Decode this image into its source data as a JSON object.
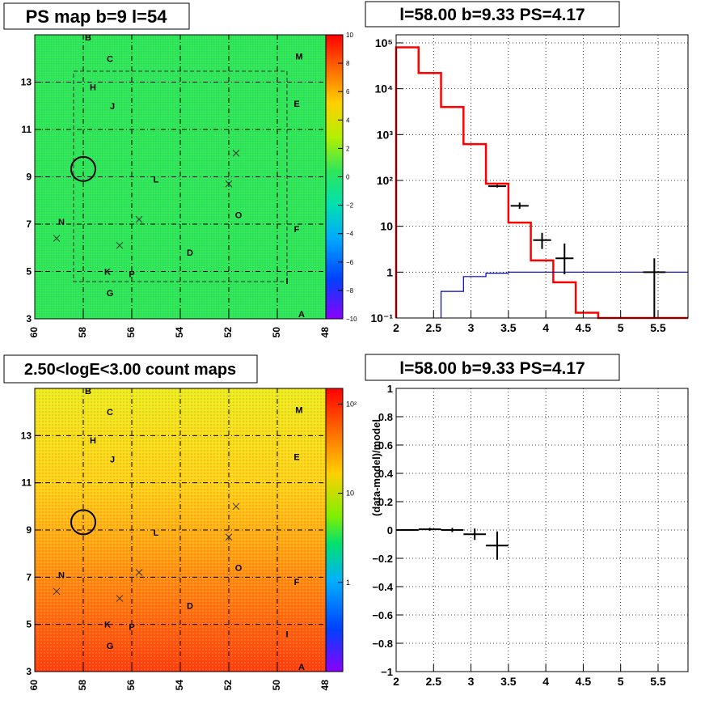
{
  "chart_data": [
    {
      "type": "heatmap",
      "title": "PS map b=9 l=54",
      "x_ticks": [
        "60",
        "58",
        "56",
        "54",
        "52",
        "50",
        "48"
      ],
      "x_values": [
        60,
        58,
        56,
        54,
        52,
        50,
        48
      ],
      "xlim": [
        60,
        48
      ],
      "y_ticks": [
        "3",
        "5",
        "7",
        "9",
        "11",
        "13"
      ],
      "y_values": [
        3,
        5,
        7,
        9,
        11,
        13
      ],
      "ylim": [
        3,
        15
      ],
      "colorbar": {
        "scale": "linear",
        "range": [
          -10,
          10
        ],
        "ticks": [
          "10",
          "8",
          "6",
          "4",
          "2",
          "0",
          "−2",
          "−4",
          "−6",
          "−8",
          "−10"
        ],
        "tick_values": [
          10,
          8,
          6,
          4,
          2,
          0,
          -2,
          -4,
          -6,
          -8,
          -10
        ]
      },
      "grid": true,
      "field_color": "#2ee65a",
      "source_labels": [
        {
          "name": "B",
          "l": 57.8,
          "b": 14.9
        },
        {
          "name": "C",
          "l": 56.9,
          "b": 14.0
        },
        {
          "name": "M",
          "l": 49.1,
          "b": 14.1
        },
        {
          "name": "H",
          "l": 57.6,
          "b": 12.8
        },
        {
          "name": "J",
          "l": 56.8,
          "b": 12.0
        },
        {
          "name": "E",
          "l": 49.2,
          "b": 12.1
        },
        {
          "name": "L",
          "l": 55.0,
          "b": 8.9
        },
        {
          "name": "O",
          "l": 51.6,
          "b": 7.4
        },
        {
          "name": "N",
          "l": 58.9,
          "b": 7.1
        },
        {
          "name": "F",
          "l": 49.2,
          "b": 6.8
        },
        {
          "name": "D",
          "l": 53.6,
          "b": 5.8
        },
        {
          "name": "K",
          "l": 57.0,
          "b": 5.0
        },
        {
          "name": "P",
          "l": 56.0,
          "b": 4.9
        },
        {
          "name": "I",
          "l": 49.6,
          "b": 4.6
        },
        {
          "name": "G",
          "l": 56.9,
          "b": 4.1
        },
        {
          "name": "A",
          "l": 49.0,
          "b": 3.2
        }
      ],
      "crosses": [
        {
          "l": 51.7,
          "b": 10.0
        },
        {
          "l": 52.0,
          "b": 8.7
        },
        {
          "l": 55.7,
          "b": 7.2
        },
        {
          "l": 59.1,
          "b": 6.4
        },
        {
          "l": 56.5,
          "b": 6.1
        }
      ],
      "circle": {
        "l": 58.0,
        "b": 9.33
      }
    },
    {
      "type": "line",
      "title": "l=58.00 b=9.33 PS=4.17",
      "xlabel": "",
      "ylabel": "",
      "xlim": [
        2,
        5.9
      ],
      "ylim": [
        0.1,
        150000
      ],
      "y_scale": "log",
      "x_ticks": [
        "2",
        "2.5",
        "3",
        "3.5",
        "4",
        "4.5",
        "5",
        "5.5"
      ],
      "x_tick_values": [
        2,
        2.5,
        3,
        3.5,
        4,
        4.5,
        5,
        5.5
      ],
      "y_ticks": [
        "10⁻¹",
        "1",
        "10",
        "10²",
        "10³",
        "10⁴",
        "10⁵"
      ],
      "y_tick_values": [
        0.1,
        1,
        10,
        100,
        1000,
        10000,
        100000
      ],
      "grid": true,
      "series": [
        {
          "color": "#ff0000",
          "style": "step",
          "edges": [
            2.0,
            2.3,
            2.6,
            2.9,
            3.2,
            3.5,
            3.8,
            4.1,
            4.4,
            4.7,
            5.0,
            5.3,
            5.6,
            5.9
          ],
          "values": [
            80000,
            22000,
            4000,
            620,
            85,
            12,
            1.8,
            0.6,
            0.13,
            0.1,
            0.1,
            0.1,
            0.1
          ]
        },
        {
          "color": "#0000cc",
          "style": "step",
          "edges": [
            2.6,
            2.9,
            3.2,
            3.5,
            3.8,
            5.9
          ],
          "values": [
            0.38,
            0.8,
            0.95,
            1.0,
            1.0
          ]
        },
        {
          "color": "#000000",
          "style": "points",
          "points": [
            {
              "x": 3.35,
              "y": 75,
              "xerr": 0.12,
              "ylo": 70,
              "yhi": 80
            },
            {
              "x": 3.65,
              "y": 28,
              "xerr": 0.12,
              "ylo": 24,
              "yhi": 33
            },
            {
              "x": 3.95,
              "y": 5,
              "xerr": 0.12,
              "ylo": 3.2,
              "yhi": 7.2
            },
            {
              "x": 4.25,
              "y": 2,
              "xerr": 0.12,
              "ylo": 0.9,
              "yhi": 4.2
            },
            {
              "x": 5.45,
              "y": 1,
              "xerr": 0.15,
              "ylo": 0.1,
              "yhi": 2
            }
          ]
        }
      ]
    },
    {
      "type": "heatmap",
      "title": "2.50<logE<3.00 count maps",
      "x_ticks": [
        "60",
        "58",
        "56",
        "54",
        "52",
        "50",
        "48"
      ],
      "x_values": [
        60,
        58,
        56,
        54,
        52,
        50,
        48
      ],
      "xlim": [
        60,
        48
      ],
      "y_ticks": [
        "3",
        "5",
        "7",
        "9",
        "11",
        "13"
      ],
      "y_values": [
        3,
        5,
        7,
        9,
        11,
        13
      ],
      "ylim": [
        3,
        15
      ],
      "colorbar": {
        "scale": "log",
        "range": [
          0.1,
          150
        ],
        "ticks": [
          "10²",
          "10",
          "1"
        ],
        "tick_values": [
          100,
          10,
          1
        ]
      },
      "grid": true,
      "gradient": {
        "top_color": "#e8f020",
        "bottom_color": "#ff3a10"
      },
      "source_labels": [
        {
          "name": "B",
          "l": 57.8,
          "b": 14.9
        },
        {
          "name": "C",
          "l": 56.9,
          "b": 14.0
        },
        {
          "name": "M",
          "l": 49.1,
          "b": 14.1
        },
        {
          "name": "H",
          "l": 57.6,
          "b": 12.8
        },
        {
          "name": "J",
          "l": 56.8,
          "b": 12.0
        },
        {
          "name": "E",
          "l": 49.2,
          "b": 12.1
        },
        {
          "name": "L",
          "l": 55.0,
          "b": 8.9
        },
        {
          "name": "O",
          "l": 51.6,
          "b": 7.4
        },
        {
          "name": "N",
          "l": 58.9,
          "b": 7.1
        },
        {
          "name": "F",
          "l": 49.2,
          "b": 6.8
        },
        {
          "name": "D",
          "l": 53.6,
          "b": 5.8
        },
        {
          "name": "K",
          "l": 57.0,
          "b": 5.0
        },
        {
          "name": "P",
          "l": 56.0,
          "b": 4.9
        },
        {
          "name": "I",
          "l": 49.6,
          "b": 4.6
        },
        {
          "name": "G",
          "l": 56.9,
          "b": 4.1
        },
        {
          "name": "A",
          "l": 49.0,
          "b": 3.2
        }
      ],
      "crosses": [
        {
          "l": 51.7,
          "b": 10.0
        },
        {
          "l": 52.0,
          "b": 8.7
        },
        {
          "l": 55.7,
          "b": 7.2
        },
        {
          "l": 59.1,
          "b": 6.4
        },
        {
          "l": 56.5,
          "b": 6.1
        }
      ],
      "circle": {
        "l": 58.0,
        "b": 9.33
      }
    },
    {
      "type": "scatter",
      "title": "l=58.00 b=9.33 PS=4.17",
      "xlabel": "",
      "ylabel": "(data-model)/model",
      "xlim": [
        2,
        5.9
      ],
      "ylim": [
        -1,
        1
      ],
      "x_ticks": [
        "2",
        "2.5",
        "3",
        "3.5",
        "4",
        "4.5",
        "5",
        "5.5"
      ],
      "x_tick_values": [
        2,
        2.5,
        3,
        3.5,
        4,
        4.5,
        5,
        5.5
      ],
      "y_ticks": [
        "1",
        "0.8",
        "0.6",
        "0.4",
        "0.2",
        "0",
        "−0.2",
        "−0.4",
        "−0.6",
        "−0.8",
        "−1"
      ],
      "y_tick_values": [
        1,
        0.8,
        0.6,
        0.4,
        0.2,
        0,
        -0.2,
        -0.4,
        -0.6,
        -0.8,
        -1
      ],
      "grid": true,
      "series": [
        {
          "color": "#000000",
          "points": [
            {
              "x": 2.15,
              "y": 0.0,
              "xerr": 0.15,
              "yerr": 0.006
            },
            {
              "x": 2.45,
              "y": 0.005,
              "xerr": 0.15,
              "yerr": 0.01
            },
            {
              "x": 2.75,
              "y": 0.0,
              "xerr": 0.15,
              "yerr": 0.015
            },
            {
              "x": 3.05,
              "y": -0.03,
              "xerr": 0.15,
              "yerr": 0.04
            },
            {
              "x": 3.35,
              "y": -0.11,
              "xerr": 0.15,
              "yerr": 0.1
            }
          ]
        }
      ]
    }
  ]
}
